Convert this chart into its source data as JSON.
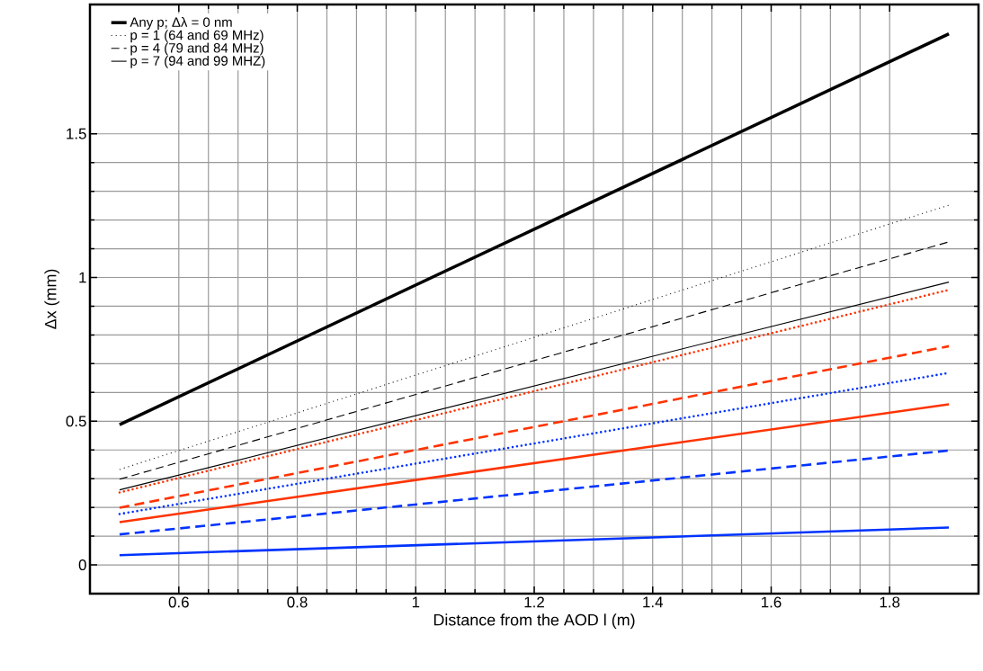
{
  "chart_data": {
    "type": "line",
    "xlabel": "Distance from the AOD l (m)",
    "ylabel": "Δx (mm)",
    "x": [
      0.5,
      1.9
    ],
    "series": [
      {
        "name": "Any p; Δλ = 0 nm",
        "color": "#000000",
        "line_style": "solid",
        "values": [
          0.488,
          1.848
        ]
      },
      {
        "name": "p = 1 (64 and 69 MHz)",
        "color": "#000000",
        "line_style": "dotted",
        "values": [
          0.332,
          1.252
        ]
      },
      {
        "name": "p = 4 (79 and 84 MHz)",
        "color": "#000000",
        "line_style": "dashed",
        "values": [
          0.298,
          1.124
        ]
      },
      {
        "name": "p = 7 (94 and 99 MHZ)",
        "color": "#000000",
        "line_style": "solid",
        "values": [
          0.261,
          0.984
        ]
      },
      {
        "color": "#ff3300",
        "line_style": "dotted",
        "values": [
          0.252,
          0.957
        ]
      },
      {
        "color": "#ff3300",
        "line_style": "dashed",
        "values": [
          0.199,
          0.761
        ]
      },
      {
        "color": "#0033ff",
        "line_style": "dotted",
        "values": [
          0.177,
          0.668
        ]
      },
      {
        "color": "#ff3300",
        "line_style": "solid",
        "values": [
          0.149,
          0.559
        ]
      },
      {
        "color": "#0033ff",
        "line_style": "dashed",
        "values": [
          0.106,
          0.398
        ]
      },
      {
        "color": "#0033ff",
        "line_style": "solid",
        "values": [
          0.034,
          0.13
        ]
      }
    ],
    "xlim": [
      0.45,
      1.95
    ],
    "ylim": [
      -0.1,
      1.95
    ],
    "xticks": [
      0.6,
      0.8,
      1,
      1.2,
      1.4,
      1.6,
      1.8
    ],
    "yticks": [
      0,
      0.5,
      1,
      1.5
    ],
    "grid": true,
    "legend": "top left",
    "marker": "none"
  }
}
